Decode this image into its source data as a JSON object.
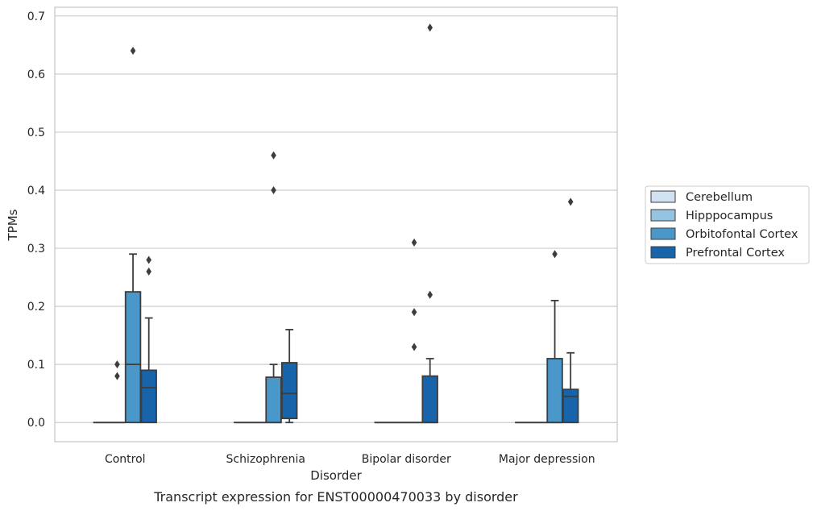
{
  "chart_data": {
    "type": "box",
    "caption": "Transcript expression for ENST00000470033 by disorder",
    "xlabel": "Disorder",
    "ylabel": "TPMs",
    "ylim": [
      -0.033,
      0.715
    ],
    "yticks": [
      0.0,
      0.1,
      0.2,
      0.3,
      0.4,
      0.5,
      0.6,
      0.7
    ],
    "ytick_labels": [
      "0.0",
      "0.1",
      "0.2",
      "0.3",
      "0.4",
      "0.5",
      "0.6",
      "0.7"
    ],
    "grid": "horizontal",
    "legend_position": "right",
    "categories": [
      "Control",
      "Schizophrenia",
      "Bipolar disorder",
      "Major depression"
    ],
    "series": [
      {
        "name": "Cerebellum",
        "color": "#d0e1f2",
        "boxes": [
          {
            "q1": 0,
            "median": 0,
            "q3": 0,
            "whisker_low": 0,
            "whisker_high": 0,
            "outliers": []
          },
          {
            "q1": 0,
            "median": 0,
            "q3": 0,
            "whisker_low": 0,
            "whisker_high": 0,
            "outliers": []
          },
          {
            "q1": 0,
            "median": 0,
            "q3": 0,
            "whisker_low": 0,
            "whisker_high": 0,
            "outliers": []
          },
          {
            "q1": 0,
            "median": 0,
            "q3": 0,
            "whisker_low": 0,
            "whisker_high": 0,
            "outliers": []
          }
        ]
      },
      {
        "name": "Hipppocampus",
        "color": "#94c4df",
        "boxes": [
          {
            "q1": 0,
            "median": 0,
            "q3": 0,
            "whisker_low": 0,
            "whisker_high": 0,
            "outliers": [
              0.08,
              0.1
            ]
          },
          {
            "q1": 0,
            "median": 0,
            "q3": 0,
            "whisker_low": 0,
            "whisker_high": 0,
            "outliers": []
          },
          {
            "q1": 0,
            "median": 0,
            "q3": 0,
            "whisker_low": 0,
            "whisker_high": 0,
            "outliers": []
          },
          {
            "q1": 0,
            "median": 0,
            "q3": 0,
            "whisker_low": 0,
            "whisker_high": 0,
            "outliers": []
          }
        ]
      },
      {
        "name": "Orbitofontal Cortex",
        "color": "#4a98c9",
        "boxes": [
          {
            "q1": 0,
            "median": 0.1,
            "q3": 0.225,
            "whisker_low": 0,
            "whisker_high": 0.29,
            "outliers": [
              0.64
            ]
          },
          {
            "q1": 0,
            "median": 0,
            "q3": 0.078,
            "whisker_low": 0,
            "whisker_high": 0.1,
            "outliers": [
              0.4,
              0.46
            ]
          },
          {
            "q1": 0,
            "median": 0,
            "q3": 0,
            "whisker_low": 0,
            "whisker_high": 0,
            "outliers": [
              0.13,
              0.19,
              0.31
            ]
          },
          {
            "q1": 0,
            "median": 0,
            "q3": 0.11,
            "whisker_low": 0,
            "whisker_high": 0.21,
            "outliers": [
              0.29
            ]
          }
        ]
      },
      {
        "name": "Prefrontal Cortex",
        "color": "#1764ab",
        "boxes": [
          {
            "q1": 0,
            "median": 0.06,
            "q3": 0.09,
            "whisker_low": 0,
            "whisker_high": 0.18,
            "outliers": [
              0.26,
              0.28
            ]
          },
          {
            "q1": 0.007,
            "median": 0.05,
            "q3": 0.103,
            "whisker_low": 0,
            "whisker_high": 0.16,
            "outliers": []
          },
          {
            "q1": 0,
            "median": 0,
            "q3": 0.08,
            "whisker_low": 0,
            "whisker_high": 0.11,
            "outliers": [
              0.22,
              0.68
            ]
          },
          {
            "q1": 0,
            "median": 0.045,
            "q3": 0.057,
            "whisker_low": 0,
            "whisker_high": 0.12,
            "outliers": [
              0.38
            ]
          }
        ]
      }
    ]
  }
}
